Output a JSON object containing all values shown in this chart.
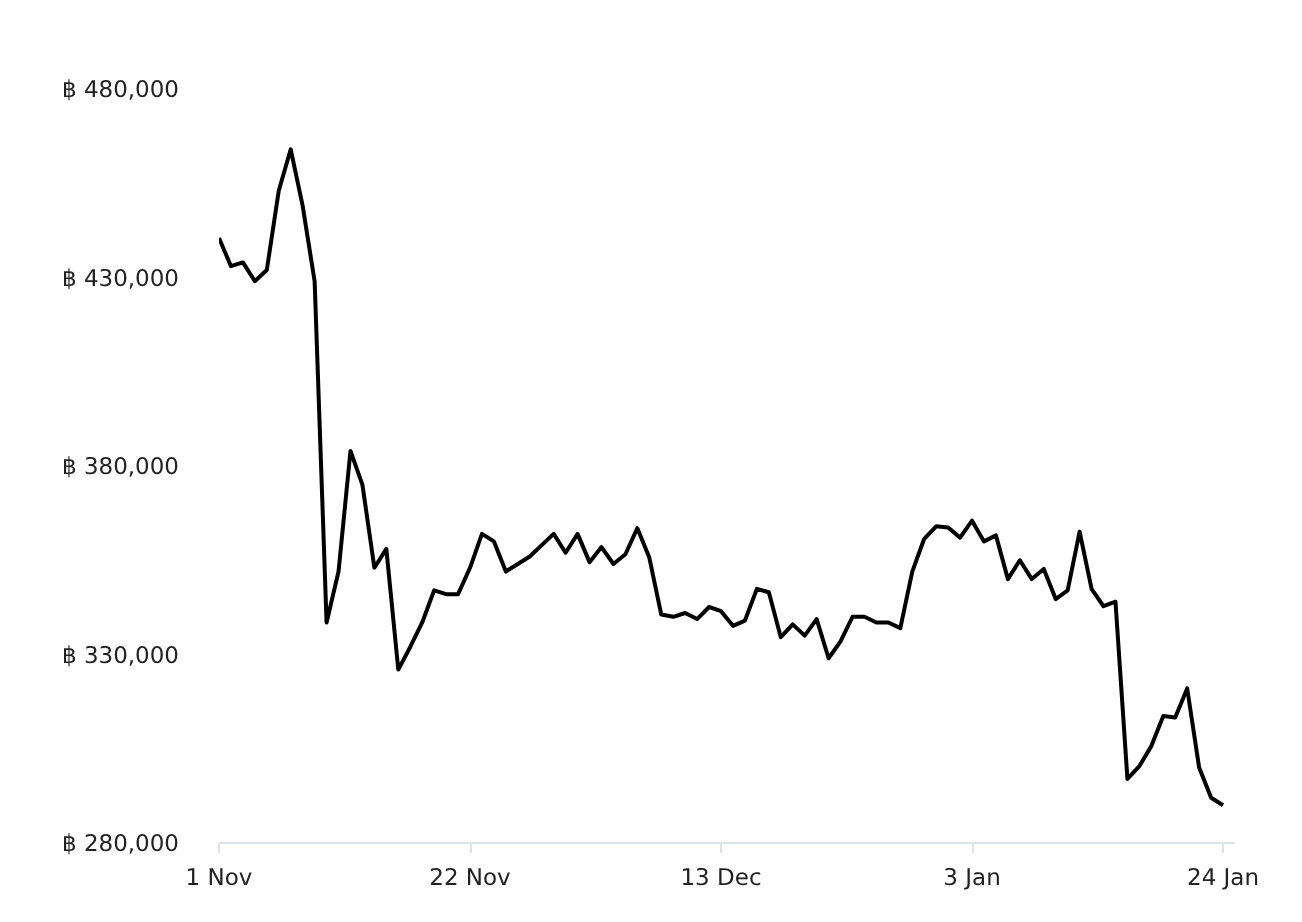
{
  "chart_data": {
    "type": "line",
    "categories": [
      "1 Nov",
      null,
      null,
      null,
      null,
      null,
      null,
      null,
      null,
      null,
      null,
      null,
      null,
      null,
      null,
      null,
      null,
      null,
      null,
      null,
      null,
      "22 Nov",
      null,
      null,
      null,
      null,
      null,
      null,
      null,
      null,
      null,
      null,
      null,
      null,
      null,
      null,
      null,
      null,
      null,
      null,
      null,
      null,
      "13 Dec",
      null,
      null,
      null,
      null,
      null,
      null,
      null,
      null,
      null,
      null,
      null,
      null,
      null,
      null,
      null,
      null,
      null,
      null,
      null,
      null,
      "3 Jan",
      null,
      null,
      null,
      null,
      null,
      null,
      null,
      null,
      null,
      null,
      null,
      null,
      null,
      null,
      null,
      null,
      null,
      null,
      null,
      null,
      "24 Jan"
    ],
    "series": [
      {
        "color": "#000000",
        "values": [
          440500,
          433000,
          434000,
          429000,
          432000,
          453000,
          464000,
          449000,
          429000,
          338500,
          352000,
          384000,
          375000,
          353000,
          358000,
          326000,
          332000,
          338500,
          347000,
          346000,
          346000,
          353000,
          362000,
          360000,
          352000,
          354000,
          356000,
          359000,
          362000,
          357000,
          362000,
          354500,
          358500,
          354000,
          356600,
          363500,
          355700,
          340600,
          340000,
          341000,
          339400,
          342600,
          341500,
          337600,
          339000,
          347400,
          346500,
          334600,
          338000,
          335000,
          339400,
          329000,
          333500,
          340000,
          340000,
          338500,
          338500,
          337000,
          352000,
          360700,
          364000,
          363700,
          361000,
          365500,
          360000,
          361600,
          350000,
          355000,
          350000,
          352700,
          344700,
          347000,
          362600,
          347400,
          342800,
          344000,
          297000,
          300400,
          305700,
          313700,
          313300,
          321000,
          300000,
          292000,
          290000
        ]
      }
    ],
    "ylim": [
      280000,
      480000
    ],
    "yticks": [
      {
        "value": 280000,
        "label": "฿ 280,000"
      },
      {
        "value": 330000,
        "label": "฿ 330,000"
      },
      {
        "value": 380000,
        "label": "฿ 380,000"
      },
      {
        "value": 430000,
        "label": "฿ 430,000"
      },
      {
        "value": 480000,
        "label": "฿ 480,000"
      }
    ],
    "grid": false,
    "marker": "none",
    "line_style": "solid"
  }
}
